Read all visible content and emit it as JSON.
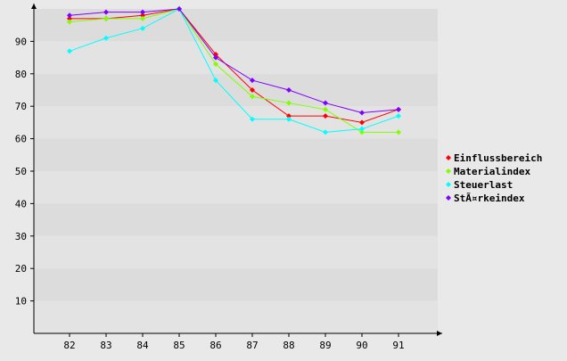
{
  "chart_data": {
    "type": "line",
    "title": "",
    "xlabel": "",
    "ylabel": "",
    "x": [
      82,
      83,
      84,
      85,
      86,
      87,
      88,
      89,
      90,
      91
    ],
    "ylim": [
      0,
      100
    ],
    "y_ticks": [
      10,
      20,
      30,
      40,
      50,
      60,
      70,
      80,
      90
    ],
    "grid": "alternating horizontal bands",
    "legend_position": "right",
    "series": [
      {
        "name": "Einflussbereich",
        "color": "#ff0000",
        "values": [
          97,
          97,
          98,
          100,
          86,
          75,
          67,
          67,
          65,
          69
        ]
      },
      {
        "name": "Materialindex",
        "color": "#80ff00",
        "values": [
          96,
          97,
          97,
          100,
          83,
          73,
          71,
          69,
          62,
          62
        ]
      },
      {
        "name": "Steuerlast",
        "color": "#00ffff",
        "values": [
          87,
          91,
          94,
          100,
          78,
          66,
          66,
          62,
          63,
          67
        ]
      },
      {
        "name": "StÃ¤rkeindex",
        "color": "#8000ff",
        "values": [
          98,
          99,
          99,
          100,
          85,
          78,
          75,
          71,
          68,
          69
        ]
      }
    ]
  }
}
